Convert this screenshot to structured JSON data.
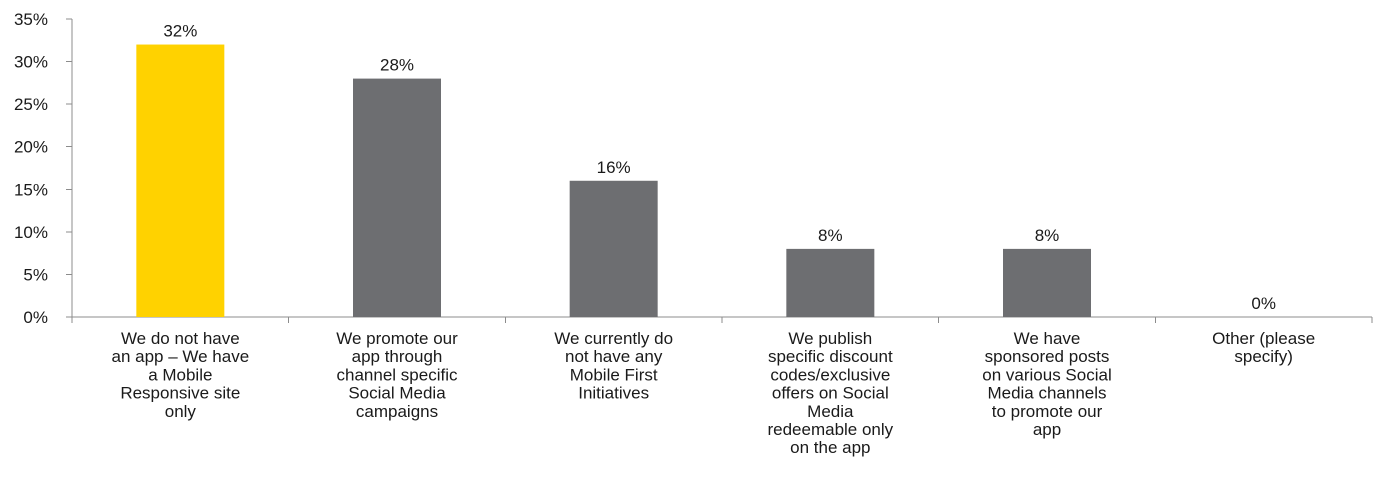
{
  "chart_data": {
    "type": "bar",
    "categories": [
      "We do not have an app – We have a Mobile Responsive site only",
      "We promote our app through channel specific Social Media campaigns",
      "We currently do not have any Mobile First Initiatives",
      "We publish specific discount codes/exclusive offers on Social Media redeemable only on the app",
      "We have sponsored posts on various Social Media channels to promote our app",
      "Other (please specify)"
    ],
    "category_lines": [
      [
        "We do not have",
        "an app – We have",
        "a Mobile",
        "Responsive site",
        "only"
      ],
      [
        "We promote our",
        "app through",
        "channel specific",
        "Social Media",
        "campaigns"
      ],
      [
        "We currently do",
        "not have any",
        "Mobile First",
        "Initiatives"
      ],
      [
        "We publish",
        "specific discount",
        "codes/exclusive",
        "offers on Social",
        "Media",
        "redeemable only",
        "on the app"
      ],
      [
        "We have",
        "sponsored posts",
        "on various Social",
        "Media channels",
        "to promote our",
        "app"
      ],
      [
        "Other (please",
        "specify)"
      ]
    ],
    "values": [
      32,
      28,
      16,
      8,
      8,
      0
    ],
    "data_labels": [
      "32%",
      "28%",
      "16%",
      "8%",
      "8%",
      "0%"
    ],
    "ylim": [
      0,
      35
    ],
    "yticks": [
      0,
      5,
      10,
      15,
      20,
      25,
      30,
      35
    ],
    "ytick_labels": [
      "0%",
      "5%",
      "10%",
      "15%",
      "20%",
      "25%",
      "30%",
      "35%"
    ],
    "bar_colors": [
      "#ffd200",
      "#6d6e71",
      "#6d6e71",
      "#6d6e71",
      "#6d6e71",
      "#6d6e71"
    ],
    "title": "",
    "xlabel": "",
    "ylabel": "",
    "grid": false,
    "legend": "none"
  }
}
